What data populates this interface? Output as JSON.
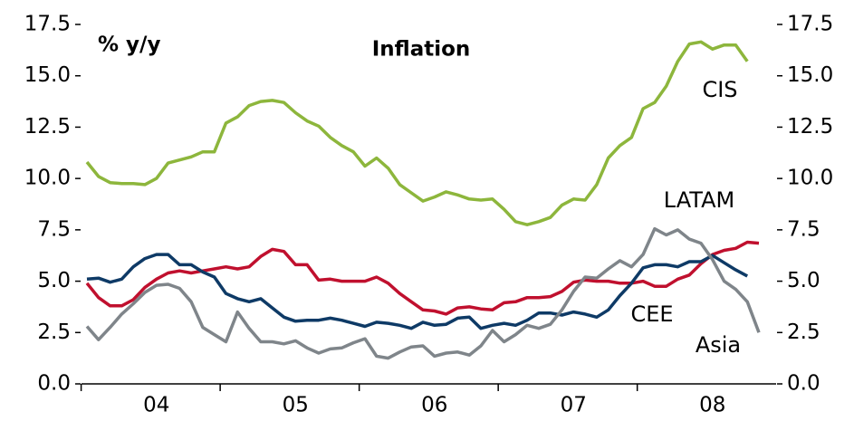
{
  "chart_data": {
    "type": "line",
    "title": "Inflation",
    "y_label": "% y/y",
    "categories": [
      null,
      null,
      null,
      null,
      null,
      null,
      "04",
      null,
      null,
      null,
      null,
      null,
      null,
      null,
      null,
      null,
      null,
      null,
      "05",
      null,
      null,
      null,
      null,
      null,
      null,
      null,
      null,
      null,
      null,
      null,
      "06",
      null,
      null,
      null,
      null,
      null,
      null,
      null,
      null,
      null,
      null,
      null,
      "07",
      null,
      null,
      null,
      null,
      null,
      null,
      null,
      null,
      null,
      null,
      null,
      "08",
      null,
      null,
      null,
      null
    ],
    "series": [
      {
        "name": "CIS",
        "color": "#8db63c",
        "values": [
          10.8,
          10.1,
          9.8,
          9.75,
          9.75,
          9.7,
          10.0,
          10.75,
          10.9,
          11.05,
          11.3,
          11.3,
          12.7,
          13.0,
          13.55,
          13.75,
          13.8,
          13.7,
          13.2,
          12.8,
          12.55,
          12.0,
          11.6,
          11.3,
          10.6,
          11.0,
          10.5,
          9.7,
          9.3,
          8.9,
          9.1,
          9.35,
          9.2,
          9.0,
          8.95,
          9.0,
          8.5,
          7.9,
          7.75,
          7.9,
          8.1,
          8.7,
          9.0,
          8.95,
          9.7,
          11.0,
          11.6,
          12.0,
          13.4,
          13.7,
          14.5,
          15.7,
          16.55,
          16.65,
          16.3,
          16.5,
          16.5,
          15.7,
          null
        ]
      },
      {
        "name": "LATAM",
        "color": "#c0102e",
        "values": [
          4.9,
          4.2,
          3.8,
          3.8,
          4.1,
          4.7,
          5.1,
          5.4,
          5.5,
          5.4,
          5.5,
          5.6,
          5.7,
          5.6,
          5.7,
          6.2,
          6.55,
          6.45,
          5.8,
          5.8,
          5.05,
          5.1,
          5.0,
          5.0,
          5.0,
          5.2,
          4.9,
          4.4,
          4.0,
          3.6,
          3.55,
          3.4,
          3.7,
          3.75,
          3.65,
          3.6,
          3.95,
          4.0,
          4.2,
          4.2,
          4.25,
          4.5,
          4.95,
          5.05,
          5.0,
          5.0,
          4.9,
          4.9,
          5.0,
          4.75,
          4.75,
          5.1,
          5.3,
          5.85,
          6.3,
          6.5,
          6.6,
          6.9,
          6.85
        ]
      },
      {
        "name": "CEE",
        "color": "#0e3a66",
        "values": [
          5.1,
          5.15,
          4.95,
          5.1,
          5.7,
          6.1,
          6.3,
          6.3,
          5.8,
          5.8,
          5.45,
          5.2,
          4.4,
          4.15,
          4.0,
          4.15,
          3.7,
          3.25,
          3.05,
          3.1,
          3.1,
          3.2,
          3.1,
          2.95,
          2.8,
          3.0,
          2.95,
          2.85,
          2.7,
          3.0,
          2.85,
          2.9,
          3.2,
          3.25,
          2.7,
          2.85,
          2.95,
          2.85,
          3.1,
          3.45,
          3.45,
          3.35,
          3.5,
          3.4,
          3.25,
          3.6,
          4.3,
          4.9,
          5.65,
          5.8,
          5.8,
          5.7,
          5.95,
          5.95,
          6.25,
          5.9,
          5.55,
          5.25,
          null
        ]
      },
      {
        "name": "Asia",
        "color": "#7f858a",
        "values": [
          2.8,
          2.15,
          2.75,
          3.4,
          3.9,
          4.45,
          4.8,
          4.85,
          4.65,
          4.0,
          2.75,
          2.4,
          2.05,
          3.5,
          2.7,
          2.05,
          2.05,
          1.95,
          2.1,
          1.75,
          1.5,
          1.7,
          1.75,
          2.0,
          2.2,
          1.35,
          1.25,
          1.55,
          1.8,
          1.85,
          1.35,
          1.5,
          1.55,
          1.4,
          1.85,
          2.6,
          2.05,
          2.4,
          2.85,
          2.7,
          2.9,
          3.6,
          4.5,
          5.2,
          5.15,
          5.6,
          6.0,
          5.7,
          6.3,
          7.55,
          7.25,
          7.5,
          7.05,
          6.85,
          6.05,
          5.0,
          4.6,
          4.0,
          2.5
        ]
      }
    ],
    "ylim": [
      0,
      17.5
    ],
    "yticks": [
      {
        "value": 0,
        "label": "0.0"
      },
      {
        "value": 2.5,
        "label": "2.5"
      },
      {
        "value": 5,
        "label": "5.0"
      },
      {
        "value": 7.5,
        "label": "7.5"
      },
      {
        "value": 10,
        "label": "10.0"
      },
      {
        "value": 12.5,
        "label": "12.5"
      },
      {
        "value": 15,
        "label": "15.0"
      },
      {
        "value": 17.5,
        "label": "17.5"
      }
    ],
    "y2lim": [
      0,
      17.5
    ],
    "y2ticks": [
      {
        "value": 0,
        "label": "0.0"
      },
      {
        "value": 2.5,
        "label": "2.5"
      },
      {
        "value": 5,
        "label": "5.0"
      },
      {
        "value": 7.5,
        "label": "7.5"
      },
      {
        "value": 10,
        "label": "10.0"
      },
      {
        "value": 12.5,
        "label": "12.5"
      },
      {
        "value": 15,
        "label": "15.0"
      },
      {
        "value": 17.5,
        "label": "17.5"
      }
    ]
  }
}
